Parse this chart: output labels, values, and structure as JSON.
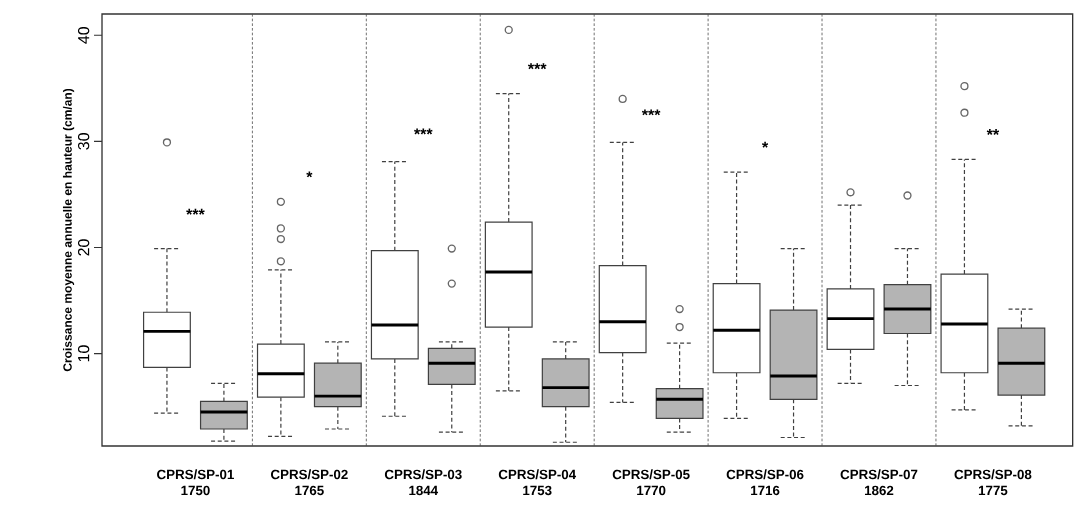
{
  "chart_data": {
    "type": "box",
    "ylabel": "Croissance moyenne annuelle en hauteur (cm/an)",
    "categories": [
      "CPRS/SP-01 1750",
      "CPRS/SP-02 1765",
      "CPRS/SP-03 1844",
      "CPRS/SP-04 1753",
      "CPRS/SP-05 1770",
      "CPRS/SP-06 1716",
      "CPRS/SP-07 1862",
      "CPRS/SP-08 1775"
    ],
    "ylim": [
      1.3,
      42
    ],
    "yticks": [
      10,
      20,
      30,
      40
    ],
    "grid": "x",
    "series": [
      {
        "color": "#ffffff",
        "boxes": [
          {
            "low": 4.4,
            "q1": 8.7,
            "median": 12.1,
            "q3": 13.9,
            "high": 19.9,
            "outliers": [
              29.9
            ]
          },
          {
            "low": 2.2,
            "q1": 5.9,
            "median": 8.1,
            "q3": 10.9,
            "high": 17.9,
            "outliers": [
              18.7,
              20.8,
              21.8,
              24.3
            ]
          },
          {
            "low": 4.1,
            "q1": 9.5,
            "median": 12.7,
            "q3": 19.7,
            "high": 28.1
          },
          {
            "low": 6.5,
            "q1": 12.5,
            "median": 17.7,
            "q3": 22.4,
            "high": 34.5,
            "outliers": [
              40.5
            ]
          },
          {
            "low": 5.4,
            "q1": 10.1,
            "median": 13.0,
            "q3": 18.3,
            "high": 29.9,
            "outliers": [
              34.0
            ]
          },
          {
            "low": 3.9,
            "q1": 8.2,
            "median": 12.2,
            "q3": 16.6,
            "high": 27.1
          },
          {
            "low": 7.2,
            "q1": 10.4,
            "median": 13.3,
            "q3": 16.1,
            "high": 24.0,
            "outliers": [
              25.2
            ]
          },
          {
            "low": 4.7,
            "q1": 8.2,
            "median": 12.8,
            "q3": 17.5,
            "high": 28.3,
            "outliers": [
              32.7,
              35.2
            ]
          }
        ]
      },
      {
        "color": "#b4b4b4",
        "boxes": [
          {
            "low": 1.75,
            "q1": 2.9,
            "median": 4.5,
            "q3": 5.5,
            "high": 7.2
          },
          {
            "low": 2.9,
            "q1": 5.0,
            "median": 6.0,
            "q3": 9.1,
            "high": 11.1
          },
          {
            "low": 2.6,
            "q1": 7.1,
            "median": 9.1,
            "q3": 10.5,
            "high": 11.1,
            "outliers": [
              16.6,
              19.9
            ]
          },
          {
            "low": 1.65,
            "q1": 5.0,
            "median": 6.8,
            "q3": 9.5,
            "high": 11.1
          },
          {
            "low": 2.6,
            "q1": 3.9,
            "median": 5.7,
            "q3": 6.7,
            "high": 11.0,
            "outliers": [
              12.5,
              14.2
            ]
          },
          {
            "low": 2.1,
            "q1": 5.7,
            "median": 7.9,
            "q3": 14.1,
            "high": 19.9
          },
          {
            "low": 7.0,
            "q1": 11.9,
            "median": 14.2,
            "q3": 16.5,
            "high": 19.9,
            "outliers": [
              24.9
            ]
          },
          {
            "low": 3.2,
            "q1": 6.1,
            "median": 9.1,
            "q3": 12.4,
            "high": 14.2
          }
        ]
      }
    ],
    "annotations": [
      "***",
      "*",
      "***",
      "***",
      "***",
      "*",
      "**"
    ]
  }
}
